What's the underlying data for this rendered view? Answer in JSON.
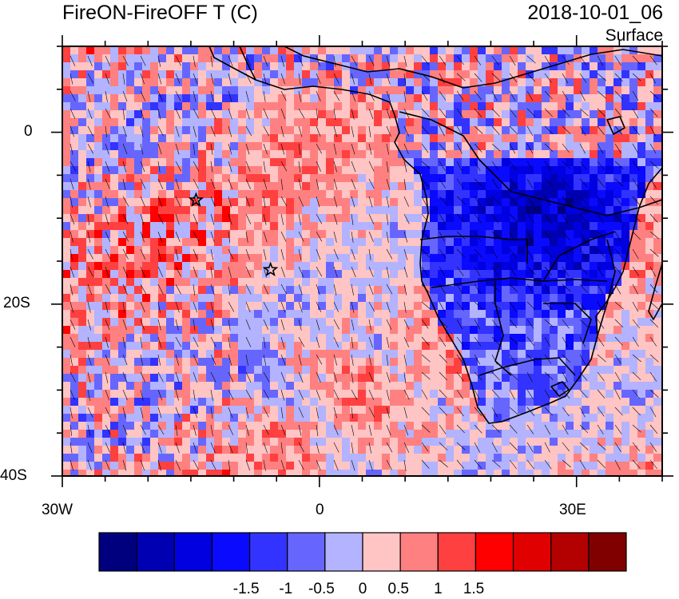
{
  "title": {
    "variable": "FireON-FireOFF T (C)",
    "time": "2018-10-01_06",
    "level": "Surface"
  },
  "map": {
    "region": "Southern Africa and South Atlantic",
    "lon_range": [
      -30,
      40
    ],
    "lat_range": [
      -40,
      10
    ],
    "x_ticks": [
      {
        "value": -30,
        "label": "30W"
      },
      {
        "value": 0,
        "label": "0"
      },
      {
        "value": 30,
        "label": "30E"
      }
    ],
    "y_ticks": [
      {
        "value": 0,
        "label": "0"
      },
      {
        "value": -20,
        "label": "20S"
      },
      {
        "value": -40,
        "label": "40S"
      }
    ],
    "markers": [
      {
        "type": "star",
        "lon": -14.4,
        "lat": -7.9
      },
      {
        "type": "star",
        "lon": -5.7,
        "lat": -16.0
      }
    ],
    "overlays": [
      "wind-barbs",
      "country-borders",
      "coastlines"
    ]
  },
  "colorbar": {
    "colors": [
      "#00007f",
      "#0000b3",
      "#0000e0",
      "#0a0aff",
      "#3333ff",
      "#6666ff",
      "#b3b3ff",
      "#ffc4c4",
      "#ff8080",
      "#ff4040",
      "#ff0000",
      "#e00000",
      "#b30000",
      "#800000"
    ],
    "labels": [
      {
        "value": -1.5,
        "label": "-1.5"
      },
      {
        "value": -1,
        "label": "-1"
      },
      {
        "value": -0.5,
        "label": "-0.5"
      },
      {
        "value": 0,
        "label": "0"
      },
      {
        "value": 0.5,
        "label": "0.5"
      },
      {
        "value": 1,
        "label": "1"
      },
      {
        "value": 1.5,
        "label": "1.5"
      }
    ]
  }
}
